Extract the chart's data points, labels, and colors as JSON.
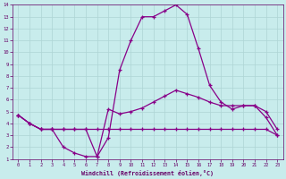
{
  "xlabel": "Windchill (Refroidissement éolien,°C)",
  "bg_color": "#c8ecec",
  "grid_color": "#aed4d4",
  "line_color": "#880088",
  "xlim": [
    -0.5,
    23.5
  ],
  "ylim": [
    1,
    14
  ],
  "xticks": [
    0,
    1,
    2,
    3,
    4,
    5,
    6,
    7,
    8,
    9,
    10,
    11,
    12,
    13,
    14,
    15,
    16,
    17,
    18,
    19,
    20,
    21,
    22,
    23
  ],
  "yticks": [
    1,
    2,
    3,
    4,
    5,
    6,
    7,
    8,
    9,
    10,
    11,
    12,
    13,
    14
  ],
  "line1_x": [
    0,
    1,
    2,
    3,
    4,
    5,
    6,
    7,
    8,
    9,
    10,
    11,
    12,
    13,
    14,
    15,
    16,
    17,
    18,
    19,
    20,
    21,
    22,
    23
  ],
  "line1_y": [
    4.7,
    4.0,
    3.5,
    3.5,
    3.5,
    3.5,
    3.5,
    1.2,
    5.2,
    4.8,
    5.0,
    5.3,
    5.8,
    6.3,
    6.8,
    6.5,
    6.2,
    5.8,
    5.5,
    5.5,
    5.5,
    5.5,
    5.0,
    3.5
  ],
  "line2_x": [
    0,
    1,
    2,
    3,
    4,
    5,
    6,
    7,
    8,
    9,
    10,
    11,
    12,
    13,
    14,
    15,
    16,
    17,
    18,
    19,
    20,
    21,
    22,
    23
  ],
  "line2_y": [
    4.7,
    4.0,
    3.5,
    3.5,
    3.5,
    3.5,
    3.5,
    3.5,
    3.5,
    3.5,
    3.5,
    3.5,
    3.5,
    3.5,
    3.5,
    3.5,
    3.5,
    3.5,
    3.5,
    3.5,
    3.5,
    3.5,
    3.5,
    3.0
  ],
  "line3_x": [
    0,
    1,
    2,
    3,
    4,
    5,
    6,
    7,
    8,
    9,
    10,
    11,
    12,
    13,
    14,
    15,
    16,
    17,
    18,
    19,
    20,
    21,
    22,
    23
  ],
  "line3_y": [
    4.7,
    4.0,
    3.5,
    3.5,
    2.0,
    1.5,
    1.2,
    1.2,
    2.8,
    8.5,
    11.0,
    13.0,
    13.0,
    13.5,
    14.0,
    13.2,
    10.3,
    7.2,
    5.8,
    5.2,
    5.5,
    5.5,
    4.5,
    3.0
  ]
}
